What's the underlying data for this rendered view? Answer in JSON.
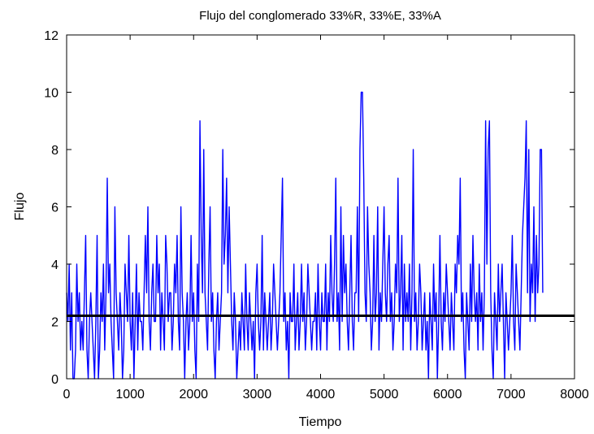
{
  "chart_data": {
    "type": "line",
    "title": "Flujo del conglomerado 33%R, 33%E, 33%A",
    "xlabel": "Tiempo",
    "ylabel": "Flujo",
    "xlim": [
      0,
      8000
    ],
    "ylim": [
      0,
      12
    ],
    "x_ticks": [
      "0",
      "1000",
      "2000",
      "3000",
      "4000",
      "5000",
      "6000",
      "7000",
      "8000"
    ],
    "y_ticks": [
      "0",
      "2",
      "4",
      "6",
      "8",
      "10",
      "12"
    ],
    "grid": false,
    "legend": "none",
    "colors": {
      "series": "#0000ff",
      "mean": "#000000"
    },
    "series": [
      {
        "x_start": 0,
        "x_step": 20,
        "values": [
          3,
          2,
          4,
          1,
          3,
          0,
          0,
          1,
          4,
          2,
          3,
          1,
          2,
          1,
          3,
          5,
          1,
          0,
          2,
          3,
          2,
          1,
          0,
          2,
          5,
          0,
          1,
          3,
          2,
          4,
          1,
          3,
          7,
          3,
          4,
          2,
          1,
          0,
          6,
          3,
          2,
          1,
          3,
          2,
          0,
          1,
          4,
          3,
          2,
          5,
          2,
          1,
          3,
          0,
          2,
          4,
          1,
          3,
          2,
          2,
          1,
          3,
          5,
          3,
          6,
          2,
          1,
          3,
          4,
          2,
          2,
          5,
          3,
          4,
          1,
          3,
          2,
          1,
          5,
          4,
          2,
          3,
          3,
          1,
          2,
          4,
          3,
          5,
          2,
          1,
          6,
          3,
          2,
          0,
          2,
          3,
          1,
          2,
          5,
          2,
          3,
          1,
          0,
          4,
          2,
          9,
          5,
          3,
          8,
          3,
          2,
          1,
          4,
          6,
          2,
          3,
          1,
          0,
          2,
          3,
          1,
          2,
          3,
          8,
          4,
          5,
          7,
          3,
          6,
          4,
          2,
          1,
          3,
          2,
          0,
          1,
          2,
          1,
          3,
          2,
          1,
          4,
          2,
          1,
          3,
          2,
          1,
          2,
          0,
          3,
          4,
          2,
          1,
          2,
          5,
          1,
          3,
          2,
          1,
          2,
          3,
          1,
          2,
          4,
          3,
          2,
          1,
          2,
          3,
          5,
          7,
          2,
          3,
          1,
          2,
          0,
          3,
          2,
          2,
          4,
          1,
          2,
          3,
          1,
          2,
          4,
          2,
          3,
          1,
          2,
          4,
          3,
          2,
          1,
          2,
          2,
          3,
          1,
          4,
          2,
          1,
          3,
          2,
          2,
          4,
          1,
          3,
          2,
          5,
          3,
          2,
          4,
          7,
          2,
          3,
          1,
          6,
          2,
          5,
          3,
          4,
          2,
          1,
          3,
          5,
          2,
          1,
          3,
          3,
          6,
          2,
          8,
          10,
          10,
          7,
          3,
          2,
          6,
          4,
          3,
          1,
          2,
          5,
          2,
          3,
          6,
          1,
          3,
          2,
          4,
          6,
          3,
          2,
          4,
          5,
          2,
          3,
          1,
          2,
          4,
          3,
          7,
          2,
          3,
          5,
          1,
          4,
          2,
          3,
          2,
          4,
          1,
          3,
          8,
          2,
          3,
          1,
          2,
          4,
          3,
          1,
          2,
          3,
          1,
          2,
          0,
          3,
          2,
          1,
          4,
          2,
          3,
          0,
          2,
          5,
          2,
          1,
          3,
          2,
          4,
          3,
          2,
          1,
          3,
          2,
          1,
          4,
          3,
          5,
          4,
          7,
          2,
          3,
          1,
          0,
          3,
          2,
          1,
          4,
          2,
          5,
          3,
          2,
          3,
          1,
          4,
          2,
          3,
          1,
          3,
          9,
          4,
          8,
          9,
          3,
          1,
          0,
          3,
          2,
          1,
          4,
          2,
          3,
          4,
          2,
          0,
          3,
          2,
          1,
          2,
          3,
          5,
          2,
          1,
          4,
          3,
          2,
          1,
          3,
          5,
          6,
          7,
          9,
          3,
          8,
          2,
          4,
          3,
          6,
          2,
          5,
          3,
          4,
          8,
          8,
          3
        ]
      },
      {
        "value": 2.2
      }
    ]
  }
}
